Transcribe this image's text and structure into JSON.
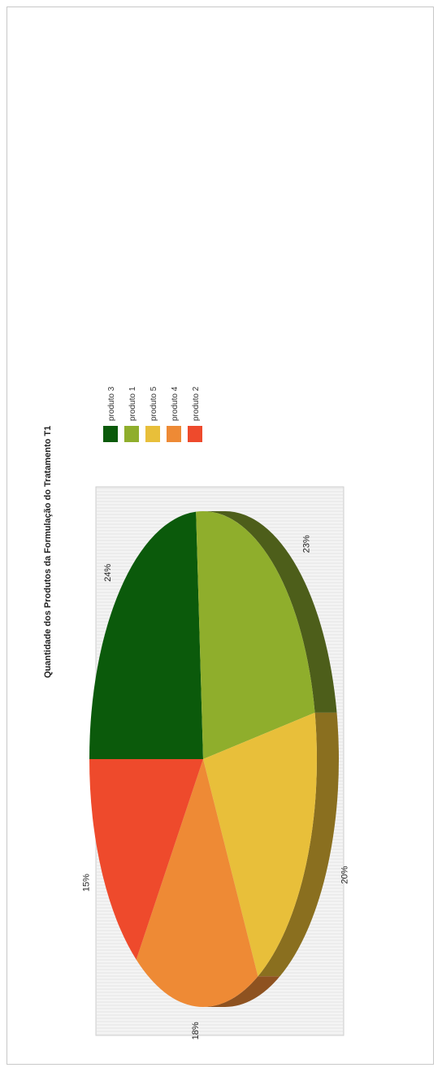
{
  "chart_data": {
    "type": "pie",
    "title": "Quantidade dos Produtos da Formulação do Tratamento T1",
    "slices": [
      {
        "name": "produto 3",
        "value": 24,
        "label": "24%",
        "color": "#0b5a0b",
        "shade": "#063506"
      },
      {
        "name": "produto 1",
        "value": 23,
        "label": "23%",
        "color": "#8fae2c",
        "shade": "#4d5e1a"
      },
      {
        "name": "produto 5",
        "value": 20,
        "label": "20%",
        "color": "#e8bf3a",
        "shade": "#8a6f1f"
      },
      {
        "name": "produto 4",
        "value": 18,
        "label": "18%",
        "color": "#ee8a35",
        "shade": "#8e5220"
      },
      {
        "name": "produto 2",
        "value": 15,
        "label": "15%",
        "color": "#ee4a2c",
        "shade": "#8e2c1a"
      }
    ],
    "legend": [
      "produto 3",
      "produto 1",
      "produto 5",
      "produto 4",
      "produto 2"
    ],
    "legend_position": "top",
    "style": "3d-pie",
    "orientation": "rotated-90-clockwise"
  }
}
